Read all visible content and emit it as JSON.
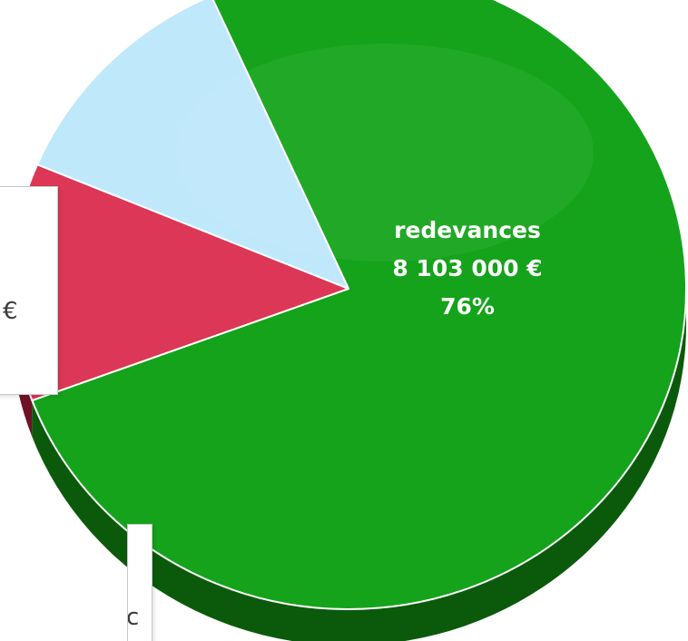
{
  "chart_data": {
    "type": "pie",
    "slices": [
      {
        "label_lines": [
          "redevances",
          "8 103 000 €",
          "76%"
        ],
        "percent": 76,
        "color": "#14a31a",
        "side_color": "#0b5a0c"
      },
      {
        "label_lines": [],
        "percent": 12,
        "color": "#dc3756",
        "side_color": "#6f1226"
      },
      {
        "label_lines": [],
        "percent": 12,
        "color": "#bfe8fb",
        "side_color": "#6f8fa0"
      }
    ]
  },
  "callouts": {
    "top": {
      "text": "€"
    },
    "bottom": {
      "text": "c"
    }
  }
}
